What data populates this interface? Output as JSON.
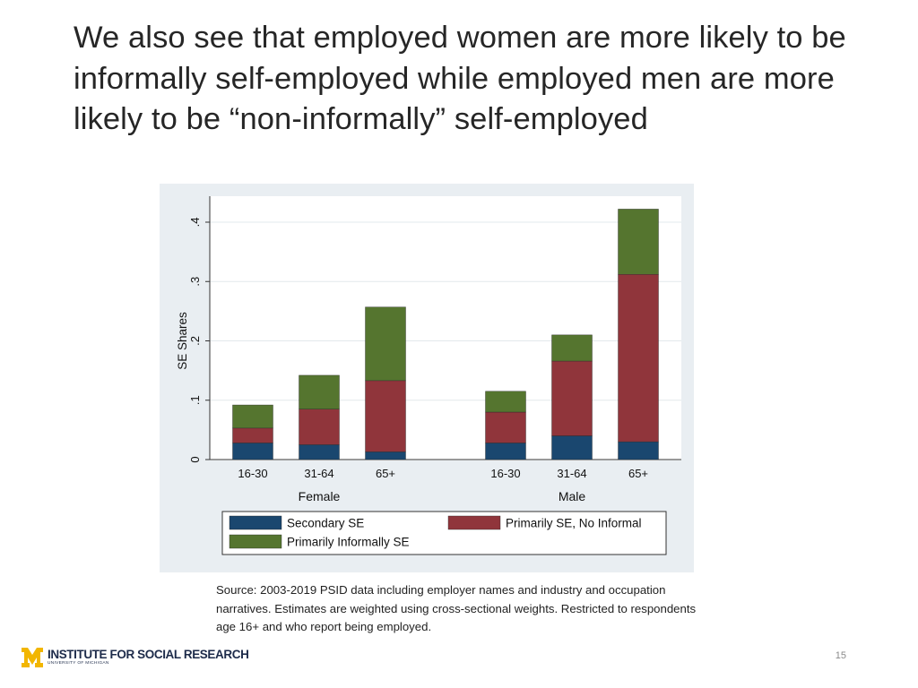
{
  "slide": {
    "title": "We also see that employed women are more likely to be informally self-employed while employed men are more likely to be “non-informally” self-employed",
    "source": "Source: 2003-2019 PSID data including employer names and industry and occupation narratives. Estimates are weighted using cross-sectional weights. Restricted to respondents age 16+ and who report being employed.",
    "logo_main": "INSTITUTE FOR SOCIAL RESEARCH",
    "logo_sub": "UNIVERSITY OF MICHIGAN",
    "page_number": "15"
  },
  "chart_data": {
    "type": "bar",
    "stacked": true,
    "ylabel": "SE Shares",
    "ylim": [
      0,
      0.42
    ],
    "yticks": [
      0,
      0.1,
      0.2,
      0.3,
      0.4
    ],
    "ytick_labels": [
      "0",
      ".1",
      ".2",
      ".3",
      ".4"
    ],
    "grid": true,
    "legend_position": "bottom",
    "groups": [
      {
        "label": "Female",
        "categories": [
          "16-30",
          "31-64",
          "65+"
        ]
      },
      {
        "label": "Male",
        "categories": [
          "16-30",
          "31-64",
          "65+"
        ]
      }
    ],
    "series": [
      {
        "name": "Secondary SE",
        "color": "#1a476f",
        "values": [
          0.028,
          0.025,
          0.013,
          0.028,
          0.04,
          0.03
        ]
      },
      {
        "name": "Primarily SE, No Informal",
        "color": "#90353b",
        "values": [
          0.025,
          0.06,
          0.12,
          0.052,
          0.126,
          0.282
        ]
      },
      {
        "name": "Primarily Informally SE",
        "color": "#55752f",
        "values": [
          0.039,
          0.057,
          0.124,
          0.035,
          0.044,
          0.11
        ]
      }
    ]
  }
}
